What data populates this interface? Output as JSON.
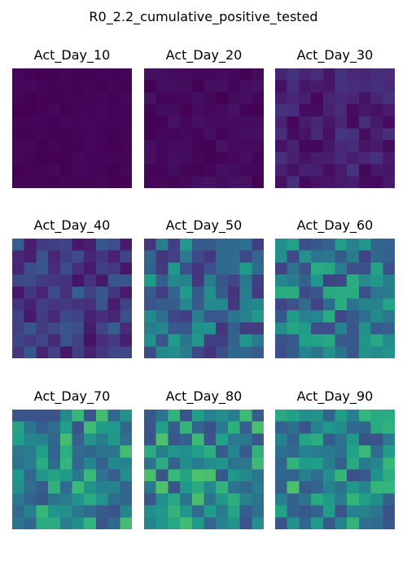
{
  "chart_data": {
    "type": "heatmap",
    "title": "R0_2.2_cumulative_positive_tested",
    "colormap": "viridis",
    "color_range": [
      0,
      1
    ],
    "axes_visible": false,
    "grid_size": [
      10,
      10
    ],
    "panels": [
      {
        "title": "Act_Day_10",
        "value_range_approx": [
          0.0,
          0.02
        ],
        "seed": 11
      },
      {
        "title": "Act_Day_20",
        "value_range_approx": [
          0.0,
          0.05
        ],
        "seed": 23
      },
      {
        "title": "Act_Day_30",
        "value_range_approx": [
          0.02,
          0.15
        ],
        "seed": 37
      },
      {
        "title": "Act_Day_40",
        "value_range_approx": [
          0.05,
          0.3
        ],
        "seed": 41
      },
      {
        "title": "Act_Day_50",
        "value_range_approx": [
          0.15,
          0.55
        ],
        "seed": 53
      },
      {
        "title": "Act_Day_60",
        "value_range_approx": [
          0.2,
          0.65
        ],
        "seed": 67
      },
      {
        "title": "Act_Day_70",
        "value_range_approx": [
          0.25,
          0.7
        ],
        "seed": 71
      },
      {
        "title": "Act_Day_80",
        "value_range_approx": [
          0.25,
          0.72
        ],
        "seed": 89
      },
      {
        "title": "Act_Day_90",
        "value_range_approx": [
          0.25,
          0.72
        ],
        "seed": 97
      }
    ]
  }
}
